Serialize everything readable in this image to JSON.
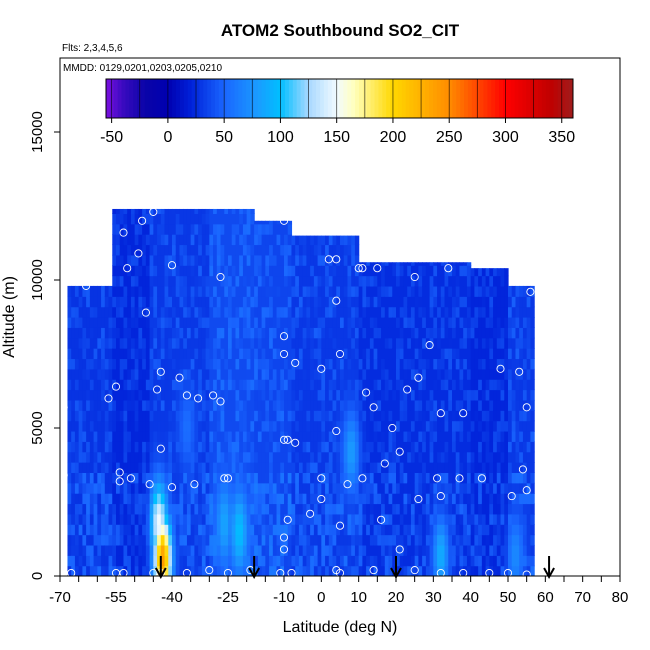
{
  "chart_data": {
    "type": "heatmap",
    "title": "ATOM2 Southbound SO2_CIT",
    "subtitle": "Flts: 2,3,4,5,6",
    "annotation": "MMDD: 0129,0201,0203,0205,0210",
    "xlabel": "Latitude (deg N)",
    "ylabel": "Altitude (m)",
    "xlim": [
      -70,
      80
    ],
    "ylim": [
      0,
      17500
    ],
    "x_ticks": [
      "-70",
      "-55",
      "-40",
      "-25",
      "-10",
      "0",
      "10",
      "20",
      "30",
      "40",
      "50",
      "60",
      "70",
      "80"
    ],
    "y_ticks": [
      "0",
      "5000",
      "10000",
      "15000"
    ],
    "colorbar": {
      "range": [
        -55,
        360
      ],
      "ticks": [
        "-50",
        "0",
        "50",
        "100",
        "150",
        "200",
        "250",
        "300",
        "350"
      ],
      "stops": [
        {
          "v": -55,
          "c": "#7a10e0"
        },
        {
          "v": -40,
          "c": "#3a0ac0"
        },
        {
          "v": -20,
          "c": "#0a04a8"
        },
        {
          "v": 0,
          "c": "#0000b0"
        },
        {
          "v": 20,
          "c": "#0020d8"
        },
        {
          "v": 50,
          "c": "#1a66ff"
        },
        {
          "v": 80,
          "c": "#1a9cff"
        },
        {
          "v": 100,
          "c": "#00bfff"
        },
        {
          "v": 125,
          "c": "#a8d8ff"
        },
        {
          "v": 150,
          "c": "#f2fbff"
        },
        {
          "v": 165,
          "c": "#ffffbf"
        },
        {
          "v": 200,
          "c": "#ffd700"
        },
        {
          "v": 250,
          "c": "#ff8c00"
        },
        {
          "v": 300,
          "c": "#ff0000"
        },
        {
          "v": 340,
          "c": "#c00000"
        },
        {
          "v": 360,
          "c": "#a01c1c"
        }
      ]
    },
    "arrows_latitude": [
      -43,
      -18,
      20,
      61
    ],
    "profiles": [
      {
        "lat_min": -68,
        "lat_max": -56,
        "alt_max": 9800,
        "mean": 28
      },
      {
        "lat_min": -56,
        "lat_max": -46,
        "alt_max": 12400,
        "mean": 22
      },
      {
        "lat_min": -46,
        "lat_max": -30,
        "alt_max": 12400,
        "mean": 30
      },
      {
        "lat_min": -30,
        "lat_max": -18,
        "alt_max": 12400,
        "mean": 38
      },
      {
        "lat_min": -18,
        "lat_max": -8,
        "alt_max": 12000,
        "mean": 36
      },
      {
        "lat_min": -8,
        "lat_max": 10,
        "alt_max": 11500,
        "mean": 30
      },
      {
        "lat_min": 10,
        "lat_max": 40,
        "alt_max": 10600,
        "mean": 25
      },
      {
        "lat_min": 40,
        "lat_max": 50,
        "alt_max": 10400,
        "mean": 22
      },
      {
        "lat_min": 50,
        "lat_max": 57,
        "alt_max": 9800,
        "mean": 30
      }
    ],
    "hotspots": [
      {
        "lat": -42.5,
        "alt": 600,
        "value": 240
      },
      {
        "lat": -43.5,
        "alt": 1800,
        "value": 150
      },
      {
        "lat": -22,
        "alt": 1500,
        "value": 100
      },
      {
        "lat": -26,
        "alt": 1800,
        "value": 85
      },
      {
        "lat": 32,
        "alt": 700,
        "value": 90
      },
      {
        "lat": 52,
        "alt": 700,
        "value": 70
      },
      {
        "lat": 8,
        "alt": 4200,
        "value": 80
      },
      {
        "lat": -36,
        "alt": 5000,
        "value": 55
      },
      {
        "lat": -54,
        "alt": 11500,
        "value": -40
      }
    ],
    "samples": [
      {
        "lat": -53,
        "alt": 11600
      },
      {
        "lat": -48,
        "alt": 12000
      },
      {
        "lat": -45,
        "alt": 12300
      },
      {
        "lat": -52,
        "alt": 10400
      },
      {
        "lat": -49,
        "alt": 10900
      },
      {
        "lat": -40,
        "alt": 10500
      },
      {
        "lat": -27,
        "alt": 10100
      },
      {
        "lat": -63,
        "alt": 9800
      },
      {
        "lat": -47,
        "alt": 8900
      },
      {
        "lat": -43,
        "alt": 6900
      },
      {
        "lat": -38,
        "alt": 6700
      },
      {
        "lat": -44,
        "alt": 6300
      },
      {
        "lat": -36,
        "alt": 6100
      },
      {
        "lat": -33,
        "alt": 6000
      },
      {
        "lat": -29,
        "alt": 6100
      },
      {
        "lat": -27,
        "alt": 5900
      },
      {
        "lat": -55,
        "alt": 6400
      },
      {
        "lat": -57,
        "alt": 6000
      },
      {
        "lat": -69,
        "alt": 5700
      },
      {
        "lat": -43,
        "alt": 4300
      },
      {
        "lat": -54,
        "alt": 3500
      },
      {
        "lat": -51,
        "alt": 3300
      },
      {
        "lat": -54,
        "alt": 3200
      },
      {
        "lat": -69,
        "alt": 3400
      },
      {
        "lat": -46,
        "alt": 3100
      },
      {
        "lat": -40,
        "alt": 3000
      },
      {
        "lat": -34,
        "alt": 3100
      },
      {
        "lat": -26,
        "alt": 3300
      },
      {
        "lat": -25,
        "alt": 3300
      },
      {
        "lat": -10,
        "alt": 12000
      },
      {
        "lat": 2,
        "alt": 10700
      },
      {
        "lat": 4,
        "alt": 10700
      },
      {
        "lat": 10,
        "alt": 10400
      },
      {
        "lat": 11,
        "alt": 10400
      },
      {
        "lat": 15,
        "alt": 10400
      },
      {
        "lat": 25,
        "alt": 10100
      },
      {
        "lat": 34,
        "alt": 10400
      },
      {
        "lat": 46,
        "alt": 10600
      },
      {
        "lat": 56,
        "alt": 9600
      },
      {
        "lat": 4,
        "alt": 9300
      },
      {
        "lat": -10,
        "alt": 8100
      },
      {
        "lat": -10,
        "alt": 7500
      },
      {
        "lat": -7,
        "alt": 7200
      },
      {
        "lat": 0,
        "alt": 7000
      },
      {
        "lat": 5,
        "alt": 7500
      },
      {
        "lat": 29,
        "alt": 7800
      },
      {
        "lat": 26,
        "alt": 6700
      },
      {
        "lat": 23,
        "alt": 6300
      },
      {
        "lat": 12,
        "alt": 6200
      },
      {
        "lat": 14,
        "alt": 5700
      },
      {
        "lat": 48,
        "alt": 7000
      },
      {
        "lat": 53,
        "alt": 6900
      },
      {
        "lat": 55,
        "alt": 5700
      },
      {
        "lat": 38,
        "alt": 5500
      },
      {
        "lat": 32,
        "alt": 5500
      },
      {
        "lat": 19,
        "alt": 5000
      },
      {
        "lat": 4,
        "alt": 4900
      },
      {
        "lat": -10,
        "alt": 4600
      },
      {
        "lat": -9,
        "alt": 4600
      },
      {
        "lat": -7,
        "alt": 4500
      },
      {
        "lat": 21,
        "alt": 4200
      },
      {
        "lat": 17,
        "alt": 3800
      },
      {
        "lat": 11,
        "alt": 3300
      },
      {
        "lat": 7,
        "alt": 3100
      },
      {
        "lat": 0,
        "alt": 3300
      },
      {
        "lat": 31,
        "alt": 3300
      },
      {
        "lat": 37,
        "alt": 3300
      },
      {
        "lat": 43,
        "alt": 3300
      },
      {
        "lat": 54,
        "alt": 3600
      },
      {
        "lat": 55,
        "alt": 2900
      },
      {
        "lat": 51,
        "alt": 2700
      },
      {
        "lat": 32,
        "alt": 2700
      },
      {
        "lat": 26,
        "alt": 2600
      },
      {
        "lat": 0,
        "alt": 2600
      },
      {
        "lat": -3,
        "alt": 2100
      },
      {
        "lat": -9,
        "alt": 1900
      },
      {
        "lat": 5,
        "alt": 1700
      },
      {
        "lat": 16,
        "alt": 1900
      },
      {
        "lat": -10,
        "alt": 1300
      },
      {
        "lat": -10,
        "alt": 900
      },
      {
        "lat": 21,
        "alt": 900
      },
      {
        "lat": -67,
        "alt": 100
      },
      {
        "lat": -55,
        "alt": 100
      },
      {
        "lat": -53,
        "alt": 100
      },
      {
        "lat": -45,
        "alt": 100
      },
      {
        "lat": -43,
        "alt": 100
      },
      {
        "lat": -36,
        "alt": 100
      },
      {
        "lat": -30,
        "alt": 200
      },
      {
        "lat": -25,
        "alt": 100
      },
      {
        "lat": -19,
        "alt": 200
      },
      {
        "lat": -11,
        "alt": 100
      },
      {
        "lat": -8,
        "alt": 100
      },
      {
        "lat": 4,
        "alt": 200
      },
      {
        "lat": 5,
        "alt": 100
      },
      {
        "lat": 14,
        "alt": 200
      },
      {
        "lat": 25,
        "alt": 200
      },
      {
        "lat": 32,
        "alt": 100
      },
      {
        "lat": 38,
        "alt": 100
      },
      {
        "lat": 45,
        "alt": 100
      },
      {
        "lat": 50,
        "alt": 100
      },
      {
        "lat": 55,
        "alt": 50
      }
    ]
  }
}
